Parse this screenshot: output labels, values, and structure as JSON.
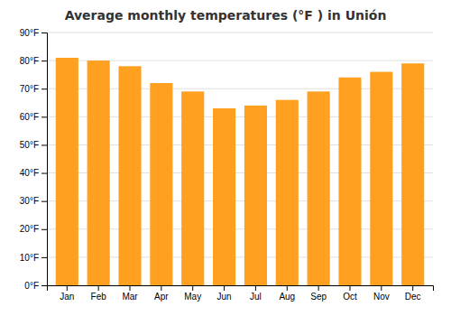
{
  "chart_data": {
    "type": "bar",
    "title": "Average monthly temperatures (°F ) in Unión",
    "categories": [
      "Jan",
      "Feb",
      "Mar",
      "Apr",
      "May",
      "Jun",
      "Jul",
      "Aug",
      "Sep",
      "Oct",
      "Nov",
      "Dec"
    ],
    "values": [
      81,
      80,
      78,
      72,
      69,
      63,
      64,
      66,
      69,
      74,
      76,
      79
    ],
    "color": "#FFA020",
    "ylim": [
      0,
      90
    ],
    "yticks": [
      {
        "value": 0,
        "label": "0°F"
      },
      {
        "value": 10,
        "label": "10°F"
      },
      {
        "value": 20,
        "label": "20°F"
      },
      {
        "value": 30,
        "label": "30°F"
      },
      {
        "value": 40,
        "label": "40°F"
      },
      {
        "value": 50,
        "label": "50°F"
      },
      {
        "value": 60,
        "label": "60°F"
      },
      {
        "value": 70,
        "label": "70°F"
      },
      {
        "value": 80,
        "label": "80°F"
      },
      {
        "value": 90,
        "label": "90°F"
      }
    ],
    "grid": true
  }
}
